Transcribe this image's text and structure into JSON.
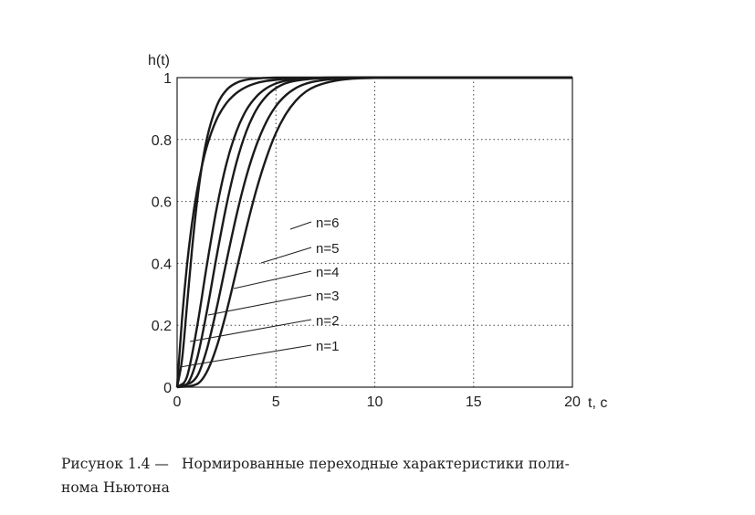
{
  "chart_data": {
    "type": "line",
    "xlabel": "t, c",
    "ylabel": "h(t)",
    "xlim": [
      0,
      20
    ],
    "ylim": [
      0,
      1
    ],
    "xticks": [
      "0",
      "5",
      "10",
      "15",
      "20"
    ],
    "yticks": [
      "0",
      "0.2",
      "0.4",
      "0.6",
      "0.8",
      "1"
    ],
    "grid": true,
    "series": [
      {
        "name": "n=1",
        "x": [
          0,
          0.25,
          0.5,
          0.75,
          1,
          1.25,
          1.5,
          2,
          2.5,
          3,
          3.5,
          4,
          4.5,
          5,
          6,
          7,
          8,
          10,
          12,
          15,
          20
        ],
        "y": [
          0,
          0.221,
          0.394,
          0.528,
          0.632,
          0.713,
          0.777,
          0.865,
          0.918,
          0.95,
          0.97,
          0.982,
          0.989,
          0.993,
          0.998,
          0.999,
          1,
          1,
          1,
          1,
          1
        ]
      },
      {
        "name": "n=2",
        "x": [
          0,
          0.25,
          0.5,
          0.75,
          1,
          1.25,
          1.5,
          2,
          2.5,
          3,
          3.5,
          4,
          4.5,
          5,
          6,
          7,
          8,
          10,
          12,
          15,
          20
        ],
        "y": [
          0,
          0.09,
          0.264,
          0.442,
          0.594,
          0.713,
          0.801,
          0.908,
          0.96,
          0.983,
          0.993,
          0.997,
          0.999,
          1,
          1,
          1,
          1,
          1,
          1,
          1,
          1
        ]
      },
      {
        "name": "n=3",
        "x": [
          0,
          0.5,
          1,
          1.5,
          2,
          2.5,
          3,
          3.5,
          4,
          4.5,
          5,
          5.5,
          6,
          7,
          8,
          9,
          10,
          12,
          15,
          20
        ],
        "y": [
          0,
          0.034,
          0.191,
          0.392,
          0.577,
          0.723,
          0.826,
          0.895,
          0.938,
          0.965,
          0.981,
          0.99,
          0.995,
          0.999,
          1,
          1,
          1,
          1,
          1,
          1
        ]
      },
      {
        "name": "n=4",
        "x": [
          0,
          0.5,
          1,
          1.5,
          2,
          2.5,
          3,
          3.5,
          4,
          4.5,
          5,
          5.5,
          6,
          7,
          8,
          9,
          10,
          12,
          15,
          20
        ],
        "y": [
          0,
          0.01,
          0.09,
          0.243,
          0.423,
          0.589,
          0.725,
          0.826,
          0.895,
          0.939,
          0.966,
          0.982,
          0.99,
          0.997,
          0.999,
          1,
          1,
          1,
          1,
          1
        ]
      },
      {
        "name": "n=5",
        "x": [
          0,
          1,
          1.5,
          2,
          2.5,
          3,
          3.5,
          4,
          4.5,
          5,
          5.5,
          6,
          6.5,
          7,
          8,
          9,
          10,
          12,
          15,
          20
        ],
        "y": [
          0,
          0.034,
          0.121,
          0.255,
          0.407,
          0.554,
          0.68,
          0.78,
          0.855,
          0.908,
          0.943,
          0.966,
          0.98,
          0.988,
          0.996,
          0.999,
          1,
          1,
          1,
          1
        ]
      },
      {
        "name": "n=6",
        "x": [
          0,
          1,
          1.5,
          2,
          2.5,
          3,
          3.5,
          4,
          4.5,
          5,
          5.5,
          6,
          6.5,
          7,
          8,
          9,
          10,
          12,
          15,
          20
        ],
        "y": [
          0,
          0.01,
          0.049,
          0.13,
          0.244,
          0.377,
          0.512,
          0.635,
          0.738,
          0.821,
          0.882,
          0.925,
          0.954,
          0.972,
          0.99,
          0.997,
          0.999,
          1,
          1,
          1
        ]
      }
    ]
  },
  "caption": {
    "label": "Рисунок 1.4 —",
    "text": "Нормированные переходные характеристики поли-",
    "text2": "нома Ньютона"
  }
}
